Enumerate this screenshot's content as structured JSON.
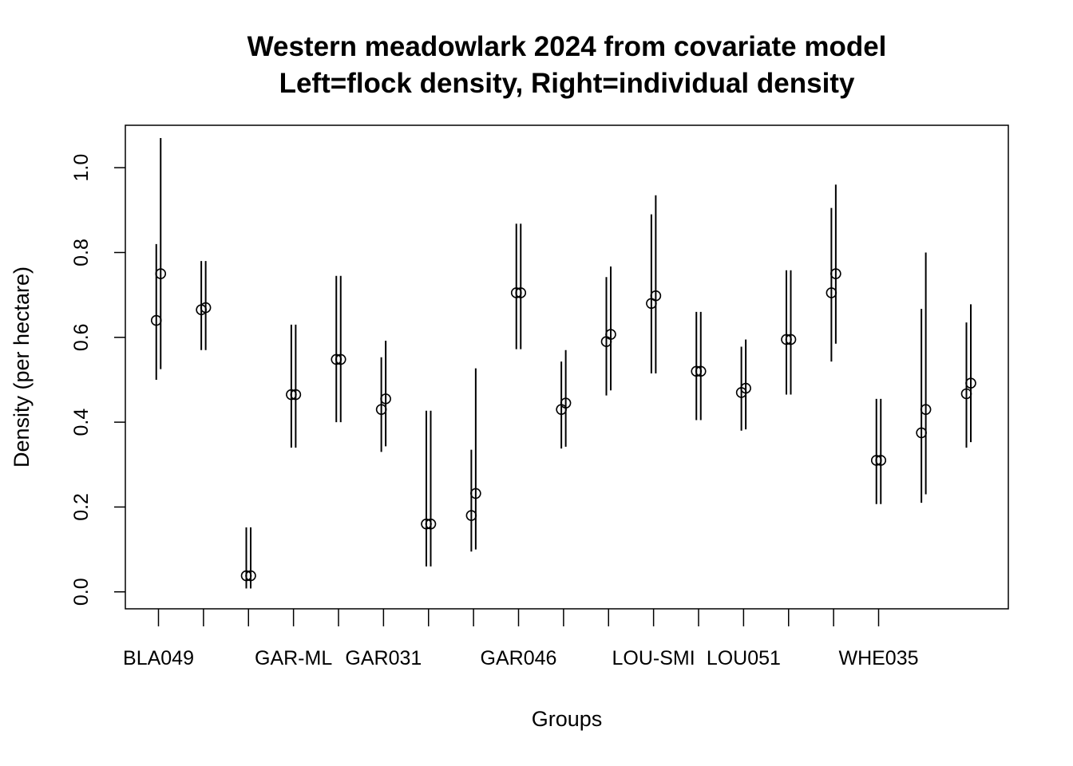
{
  "chart_data": {
    "type": "scatter",
    "title_lines": [
      "Western meadowlark 2024 from covariate model",
      "Left=flock density, Right=individual density"
    ],
    "xlabel": "Groups",
    "ylabel": "Density (per hectare)",
    "ylim": [
      -0.04,
      1.1
    ],
    "yticks": [
      "0.0",
      "0.2",
      "0.4",
      "0.6",
      "0.8",
      "1.0"
    ],
    "ytick_values": [
      0.0,
      0.2,
      0.4,
      0.6,
      0.8,
      1.0
    ],
    "xtick_labels": [
      "BLA049",
      "",
      "",
      "GAR-ML",
      "",
      "GAR031",
      "",
      "",
      "GAR046",
      "",
      "",
      "LOU-SMI",
      "",
      "LOU051",
      "",
      "",
      "WHE035"
    ],
    "grid": false,
    "marker": "open-circle",
    "series": [
      {
        "name": "flock density",
        "points": [
          {
            "x": 1,
            "y": 0.64,
            "lo": 0.5,
            "hi": 0.82
          },
          {
            "x": 2,
            "y": 0.665,
            "lo": 0.57,
            "hi": 0.78
          },
          {
            "x": 3,
            "y": 0.038,
            "lo": 0.008,
            "hi": 0.152
          },
          {
            "x": 4,
            "y": 0.465,
            "lo": 0.34,
            "hi": 0.63
          },
          {
            "x": 5,
            "y": 0.548,
            "lo": 0.4,
            "hi": 0.745
          },
          {
            "x": 6,
            "y": 0.43,
            "lo": 0.33,
            "hi": 0.553
          },
          {
            "x": 7,
            "y": 0.16,
            "lo": 0.06,
            "hi": 0.427
          },
          {
            "x": 8,
            "y": 0.18,
            "lo": 0.095,
            "hi": 0.335
          },
          {
            "x": 9,
            "y": 0.705,
            "lo": 0.572,
            "hi": 0.868
          },
          {
            "x": 10,
            "y": 0.43,
            "lo": 0.338,
            "hi": 0.543
          },
          {
            "x": 11,
            "y": 0.59,
            "lo": 0.463,
            "hi": 0.742
          },
          {
            "x": 12,
            "y": 0.68,
            "lo": 0.515,
            "hi": 0.89
          },
          {
            "x": 13,
            "y": 0.52,
            "lo": 0.405,
            "hi": 0.66
          },
          {
            "x": 14,
            "y": 0.47,
            "lo": 0.38,
            "hi": 0.578
          },
          {
            "x": 15,
            "y": 0.595,
            "lo": 0.465,
            "hi": 0.758
          },
          {
            "x": 16,
            "y": 0.705,
            "lo": 0.543,
            "hi": 0.905
          },
          {
            "x": 17,
            "y": 0.31,
            "lo": 0.207,
            "hi": 0.455
          },
          {
            "x": 18,
            "y": 0.375,
            "lo": 0.21,
            "hi": 0.667
          },
          {
            "x": 19,
            "y": 0.467,
            "lo": 0.34,
            "hi": 0.635
          }
        ]
      },
      {
        "name": "individual density",
        "points": [
          {
            "x": 1,
            "y": 0.75,
            "lo": 0.525,
            "hi": 1.07
          },
          {
            "x": 2,
            "y": 0.67,
            "lo": 0.57,
            "hi": 0.78
          },
          {
            "x": 3,
            "y": 0.038,
            "lo": 0.008,
            "hi": 0.152
          },
          {
            "x": 4,
            "y": 0.465,
            "lo": 0.34,
            "hi": 0.63
          },
          {
            "x": 5,
            "y": 0.548,
            "lo": 0.4,
            "hi": 0.745
          },
          {
            "x": 6,
            "y": 0.455,
            "lo": 0.343,
            "hi": 0.592
          },
          {
            "x": 7,
            "y": 0.16,
            "lo": 0.06,
            "hi": 0.427
          },
          {
            "x": 8,
            "y": 0.232,
            "lo": 0.1,
            "hi": 0.527
          },
          {
            "x": 9,
            "y": 0.705,
            "lo": 0.572,
            "hi": 0.868
          },
          {
            "x": 10,
            "y": 0.445,
            "lo": 0.342,
            "hi": 0.57
          },
          {
            "x": 11,
            "y": 0.607,
            "lo": 0.475,
            "hi": 0.767
          },
          {
            "x": 12,
            "y": 0.698,
            "lo": 0.515,
            "hi": 0.935
          },
          {
            "x": 13,
            "y": 0.52,
            "lo": 0.405,
            "hi": 0.66
          },
          {
            "x": 14,
            "y": 0.48,
            "lo": 0.383,
            "hi": 0.595
          },
          {
            "x": 15,
            "y": 0.595,
            "lo": 0.465,
            "hi": 0.758
          },
          {
            "x": 16,
            "y": 0.75,
            "lo": 0.585,
            "hi": 0.96
          },
          {
            "x": 17,
            "y": 0.31,
            "lo": 0.207,
            "hi": 0.455
          },
          {
            "x": 18,
            "y": 0.43,
            "lo": 0.23,
            "hi": 0.8
          },
          {
            "x": 19,
            "y": 0.492,
            "lo": 0.353,
            "hi": 0.678
          }
        ]
      }
    ]
  }
}
